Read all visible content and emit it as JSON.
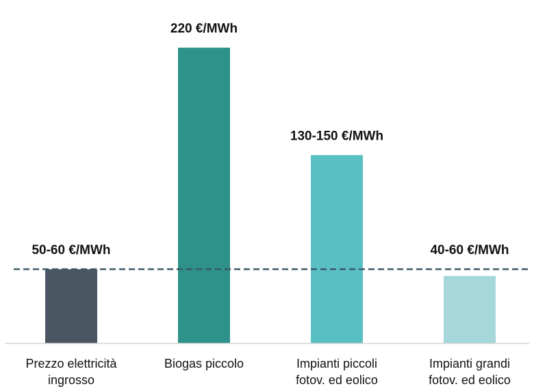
{
  "chart_data": {
    "type": "bar",
    "categories": [
      [
        "Prezzo elettricità",
        "ingrosso"
      ],
      [
        "Biogas piccolo"
      ],
      [
        "Impianti piccoli",
        "fotov. ed eolico"
      ],
      [
        "Impianti grandi",
        "fotov. ed eolico"
      ]
    ],
    "values": [
      55,
      220,
      140,
      50
    ],
    "value_labels": [
      "50-60 €/MWh",
      "220 €/MWh",
      "130-150 €/MWh",
      "40-60 €/MWh"
    ],
    "colors": [
      "#4a5662",
      "#2e918a",
      "#5abfc3",
      "#a6d8db"
    ],
    "reference_line": {
      "value": 55,
      "style": "dashed",
      "color": "#3b5766"
    },
    "title": "",
    "xlabel": "",
    "ylabel": "",
    "ylim": [
      0,
      230
    ],
    "grid": false,
    "legend": "none"
  }
}
